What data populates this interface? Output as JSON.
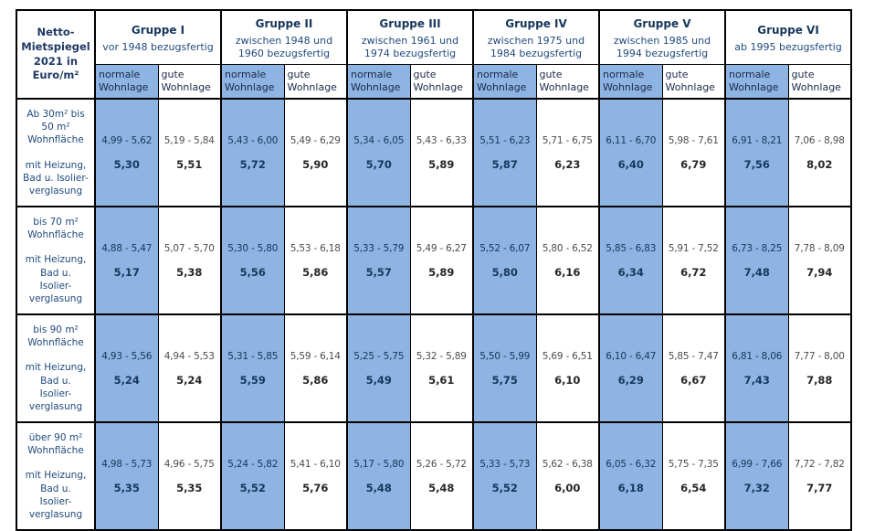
{
  "corner": {
    "title": "Netto-\nMietspiegel\n2021 in\nEuro/m²"
  },
  "wohnlage": {
    "normale": "normale\nWohnlage",
    "gute": "gute\nWohnlage"
  },
  "groups": [
    {
      "name": "Gruppe I",
      "period": "vor 1948 bezugsfertig"
    },
    {
      "name": "Gruppe II",
      "period": "zwischen 1948 und\n1960 bezugsfertig"
    },
    {
      "name": "Gruppe III",
      "period": "zwischen 1961 und\n1974 bezugsfertig"
    },
    {
      "name": "Gruppe IV",
      "period": "zwischen 1975 und\n1984 bezugsfertig"
    },
    {
      "name": "Gruppe V",
      "period": "zwischen 1985 und\n1994 bezugsfertig"
    },
    {
      "name": "Gruppe VI",
      "period": "ab 1995 bezugsfertig"
    }
  ],
  "rows": [
    {
      "size": "Ab 30m² bis\n50 m²\nWohnfläche",
      "features": "mit Heizung,\nBad u. Isolier-\nverglasung",
      "cells": [
        {
          "r": "4,99 - 5,62",
          "a": "5,30"
        },
        {
          "r": "5,19 - 5,84",
          "a": "5,51"
        },
        {
          "r": "5,43 - 6,00",
          "a": "5,72"
        },
        {
          "r": "5,49 - 6,29",
          "a": "5,90"
        },
        {
          "r": "5,34 - 6,05",
          "a": "5,70"
        },
        {
          "r": "5,43 - 6,33",
          "a": "5,89"
        },
        {
          "r": "5,51 - 6,23",
          "a": "5,87"
        },
        {
          "r": "5,71 - 6,75",
          "a": "6,23"
        },
        {
          "r": "6,11 - 6,70",
          "a": "6,40"
        },
        {
          "r": "5,98 - 7,61",
          "a": "6,79"
        },
        {
          "r": "6,91 - 8,21",
          "a": "7,56"
        },
        {
          "r": "7,06 - 8,98",
          "a": "8,02"
        }
      ]
    },
    {
      "size": "bis 70 m²\nWohnfläche",
      "features": "mit Heizung,\nBad u.\nIsolier-\nverglasung",
      "cells": [
        {
          "r": "4,88 - 5,47",
          "a": "5,17"
        },
        {
          "r": "5,07 - 5,70",
          "a": "5,38"
        },
        {
          "r": "5,30 - 5,80",
          "a": "5,56"
        },
        {
          "r": "5,53 - 6,18",
          "a": "5,86"
        },
        {
          "r": "5,33 - 5,79",
          "a": "5,57"
        },
        {
          "r": "5,49 - 6,27",
          "a": "5,89"
        },
        {
          "r": "5,52 - 6,07",
          "a": "5,80"
        },
        {
          "r": "5,80 - 6,52",
          "a": "6,16"
        },
        {
          "r": "5,85 - 6,83",
          "a": "6,34"
        },
        {
          "r": "5,91 - 7,52",
          "a": "6,72"
        },
        {
          "r": "6,73 - 8,25",
          "a": "7,48"
        },
        {
          "r": "7,78 - 8,09",
          "a": "7,94"
        }
      ]
    },
    {
      "size": "bis 90 m²\nWohnfläche",
      "features": "mit Heizung,\nBad u.\nIsolier-\nverglasung",
      "cells": [
        {
          "r": "4,93 - 5,56",
          "a": "5,24"
        },
        {
          "r": "4,94 - 5,53",
          "a": "5,24"
        },
        {
          "r": "5,31 - 5,85",
          "a": "5,59"
        },
        {
          "r": "5,59 - 6,14",
          "a": "5,86"
        },
        {
          "r": "5,25 - 5,75",
          "a": "5,49"
        },
        {
          "r": "5,32 - 5,89",
          "a": "5,61"
        },
        {
          "r": "5,50 - 5,99",
          "a": "5,75"
        },
        {
          "r": "5,69 - 6,51",
          "a": "6,10"
        },
        {
          "r": "6,10 - 6,47",
          "a": "6,29"
        },
        {
          "r": "5,85 - 7,47",
          "a": "6,67"
        },
        {
          "r": "6,81 - 8,06",
          "a": "7,43"
        },
        {
          "r": "7,77 - 8,00",
          "a": "7,88"
        }
      ]
    },
    {
      "size": "über 90 m²\nWohnfläche",
      "features": "mit Heizung,\nBad u.\nIsolier-\nverglasung",
      "cells": [
        {
          "r": "4,98 - 5,73",
          "a": "5,35"
        },
        {
          "r": "4,96 - 5,75",
          "a": "5,35"
        },
        {
          "r": "5,24 - 5,82",
          "a": "5,52"
        },
        {
          "r": "5,41 - 6,10",
          "a": "5,76"
        },
        {
          "r": "5,17 - 5,80",
          "a": "5,48"
        },
        {
          "r": "5,26 - 5,72",
          "a": "5,48"
        },
        {
          "r": "5,33 - 5,73",
          "a": "5,52"
        },
        {
          "r": "5,62 - 6,38",
          "a": "6,00"
        },
        {
          "r": "6,05 - 6,32",
          "a": "6,18"
        },
        {
          "r": "5,75 - 7,35",
          "a": "6,54"
        },
        {
          "r": "6,99 - 7,66",
          "a": "7,32"
        },
        {
          "r": "7,72 - 7,82",
          "a": "7,77"
        }
      ]
    }
  ],
  "colors": {
    "highlight_blue": "#8DB4E2",
    "header_navy": "#17375E",
    "label_blue": "#1F497D"
  }
}
